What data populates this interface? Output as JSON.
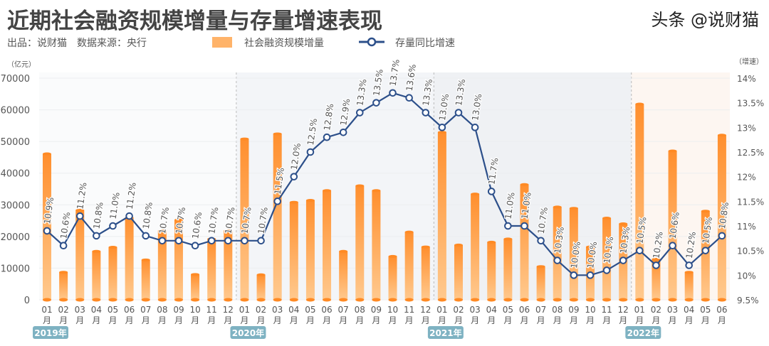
{
  "header": {
    "title": "近期社会融资规模增量与存量增速表现",
    "producer": "出品：说财猫",
    "source": "数据来源：央行"
  },
  "watermark": "头条 @说财猫",
  "chart_data": {
    "type": "bar+line",
    "title": "近期社会融资规模增量与存量增速表现",
    "left_axis": {
      "unit": "（亿元）",
      "ticks": [
        0,
        10000,
        20000,
        30000,
        40000,
        50000,
        60000,
        70000
      ],
      "range": [
        0,
        70000
      ]
    },
    "right_axis": {
      "unit": "（增速）",
      "ticks": [
        "9.5%",
        "10%",
        "10.5%",
        "11%",
        "11.5%",
        "12%",
        "12.5%",
        "13%",
        "13.5%",
        "14%"
      ],
      "range": [
        9.5,
        14
      ]
    },
    "month_labels": [
      "01",
      "02",
      "03",
      "04",
      "05",
      "06",
      "07",
      "08",
      "09",
      "10",
      "11",
      "12",
      "01",
      "02",
      "03",
      "04",
      "05",
      "06",
      "07",
      "08",
      "09",
      "10",
      "11",
      "12",
      "01",
      "02",
      "03",
      "04",
      "05",
      "06",
      "07",
      "08",
      "09",
      "10",
      "11",
      "12",
      "01",
      "02",
      "03",
      "04",
      "05",
      "06"
    ],
    "month_suffix": "月",
    "years": [
      {
        "label": "2019年",
        "start": 0
      },
      {
        "label": "2020年",
        "start": 12
      },
      {
        "label": "2021年",
        "start": 24
      },
      {
        "label": "2022年",
        "start": 36
      }
    ],
    "grid": true,
    "legend_position": "top",
    "series": [
      {
        "name": "社会融资规模增量",
        "type": "bar",
        "axis": "left",
        "color": "#ff9a3c",
        "values": [
          46100,
          8700,
          28300,
          15300,
          16600,
          25900,
          12600,
          21800,
          25200,
          8000,
          19200,
          21800,
          50800,
          7900,
          52400,
          30800,
          31400,
          34500,
          15300,
          36000,
          34500,
          13700,
          21400,
          16700,
          52900,
          17300,
          33400,
          18200,
          19200,
          36400,
          10500,
          29300,
          28900,
          16700,
          25800,
          24000,
          61800,
          12800,
          47000,
          8700,
          28000,
          52000
        ]
      },
      {
        "name": "存量同比增速",
        "type": "line",
        "axis": "right",
        "color": "#2c4f8a",
        "values": [
          10.9,
          10.6,
          11.2,
          10.8,
          11.0,
          11.2,
          10.8,
          10.7,
          10.7,
          10.6,
          10.7,
          10.7,
          10.7,
          10.7,
          11.5,
          12.0,
          12.5,
          12.8,
          12.9,
          13.3,
          13.5,
          13.7,
          13.6,
          13.3,
          13.0,
          13.3,
          13.0,
          11.7,
          11.0,
          11.0,
          10.7,
          10.3,
          10.0,
          10.0,
          10.1,
          10.3,
          10.5,
          10.2,
          10.6,
          10.2,
          10.5,
          10.8
        ]
      }
    ],
    "region_colors": [
      "#fafbfc",
      "#f3f5f8",
      "#eff1f4",
      "#fdf6f1"
    ],
    "year_badge_color": "#7eb2c2"
  }
}
